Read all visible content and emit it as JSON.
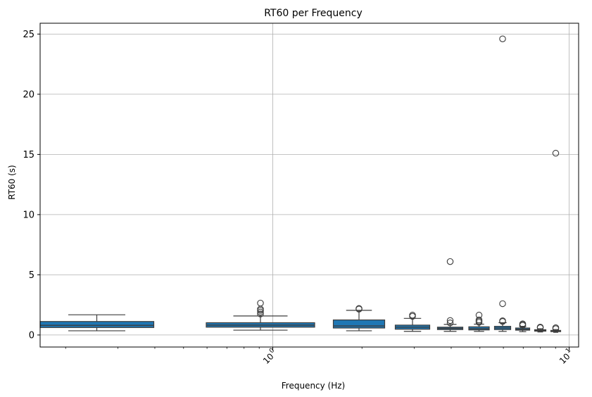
{
  "chart_data": {
    "type": "box",
    "title": "RT60 per Frequency",
    "xlabel": "Frequency (Hz)",
    "ylabel": "RT60 (s)",
    "x_scale": "log",
    "x_ticks": [
      {
        "base": "10",
        "exp": "0",
        "value": 1
      },
      {
        "base": "10",
        "exp": "1",
        "value": 10
      }
    ],
    "y_ticks": [
      "0",
      "5",
      "10",
      "15",
      "20",
      "25"
    ],
    "y_tick_values": [
      0,
      5,
      10,
      15,
      20,
      25
    ],
    "ylim": [
      -1.0,
      25.9
    ],
    "grid": true,
    "box_color": "#1f77b4",
    "edge_color": "#3d3d3d",
    "boxes": [
      {
        "position": 0,
        "min": 0.35,
        "q1": 0.62,
        "median": 0.8,
        "q3": 1.12,
        "max": 1.68,
        "outliers": []
      },
      {
        "position": 1,
        "min": 0.4,
        "q1": 0.65,
        "median": 0.82,
        "q3": 1.02,
        "max": 1.58,
        "outliers": [
          1.75,
          1.9,
          2.05,
          2.15,
          2.65
        ]
      },
      {
        "position": 2,
        "min": 0.35,
        "q1": 0.58,
        "median": 0.75,
        "q3": 1.25,
        "max": 2.05,
        "outliers": [
          2.15,
          2.2
        ]
      },
      {
        "position": 3,
        "min": 0.3,
        "q1": 0.48,
        "median": 0.65,
        "q3": 0.82,
        "max": 1.38,
        "outliers": [
          1.55,
          1.65
        ]
      },
      {
        "position": 4,
        "min": 0.3,
        "q1": 0.45,
        "median": 0.55,
        "q3": 0.65,
        "max": 0.88,
        "outliers": [
          1.0,
          1.2,
          6.1
        ]
      },
      {
        "position": 5,
        "min": 0.3,
        "q1": 0.42,
        "median": 0.52,
        "q3": 0.68,
        "max": 0.9,
        "outliers": [
          1.05,
          1.15,
          1.25,
          1.65
        ]
      },
      {
        "position": 6,
        "min": 0.3,
        "q1": 0.45,
        "median": 0.58,
        "q3": 0.72,
        "max": 1.02,
        "outliers": [
          1.12,
          1.18,
          2.6,
          24.6
        ]
      },
      {
        "position": 7,
        "min": 0.28,
        "q1": 0.4,
        "median": 0.48,
        "q3": 0.58,
        "max": 0.72,
        "outliers": [
          0.8,
          0.88,
          0.92
        ]
      },
      {
        "position": 8,
        "min": 0.25,
        "q1": 0.32,
        "median": 0.38,
        "q3": 0.44,
        "max": 0.52,
        "outliers": [
          0.6,
          0.65
        ]
      },
      {
        "position": 9,
        "min": 0.22,
        "q1": 0.28,
        "median": 0.33,
        "q3": 0.38,
        "max": 0.45,
        "outliers": [
          0.52,
          0.6,
          15.1
        ]
      }
    ]
  }
}
